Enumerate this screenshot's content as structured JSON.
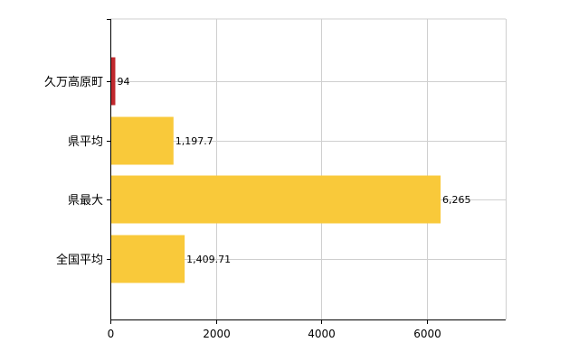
{
  "chart_data": {
    "type": "bar",
    "orientation": "horizontal",
    "categories": [
      "久万高原町",
      "県平均",
      "県最大",
      "全国平均"
    ],
    "values": [
      94,
      1197.7,
      6265,
      1409.71
    ],
    "data_labels": [
      "94",
      "1,197.7",
      "6,265",
      "1,409.71"
    ],
    "bar_colors": [
      "#c0282d",
      "#f9c93a",
      "#f9c93a",
      "#f9c93a"
    ],
    "xlim": [
      0,
      7500
    ],
    "xticks": [
      0,
      2000,
      4000,
      6000
    ],
    "xtick_labels": [
      "0",
      "2000",
      "4000",
      "6000"
    ],
    "grid": true,
    "legend": "none",
    "title": "",
    "xlabel": "",
    "ylabel": ""
  }
}
